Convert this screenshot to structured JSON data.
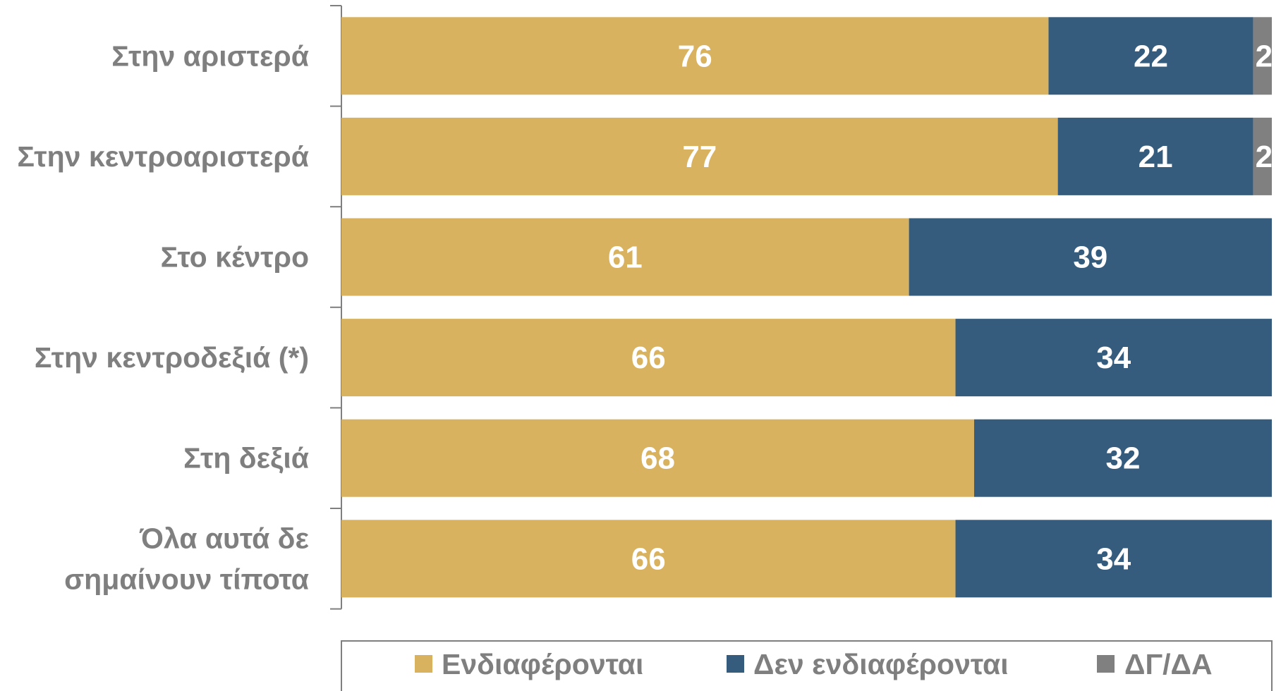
{
  "chart_data": {
    "type": "bar",
    "orientation": "horizontal",
    "stacked": true,
    "categories": [
      "Στην αριστερά",
      "Στην κεντροαριστερά",
      "Στο κέντρο",
      "Στην κεντροδεξιά (*)",
      "Στη δεξιά",
      "Όλα αυτά δε σημαίνουν τίποτα"
    ],
    "category_lines": [
      [
        "Στην αριστερά"
      ],
      [
        "Στην κεντροαριστερά"
      ],
      [
        "Στο κέντρο"
      ],
      [
        "Στην κεντροδεξιά (*)"
      ],
      [
        "Στη δεξιά"
      ],
      [
        "Όλα αυτά δε",
        "σημαίνουν τίποτα"
      ]
    ],
    "series": [
      {
        "name": "Ενδιαφέρονται",
        "color": "#D8B25F",
        "values": [
          76,
          77,
          61,
          66,
          68,
          66
        ]
      },
      {
        "name": "Δεν ενδιαφέρονται",
        "color": "#355C7D",
        "values": [
          22,
          21,
          39,
          34,
          32,
          34
        ]
      },
      {
        "name": "ΔΓ/ΔΑ",
        "color": "#808080",
        "values": [
          2,
          2,
          0,
          0,
          0,
          0
        ]
      }
    ],
    "xlim": [
      0,
      100
    ],
    "grid": false,
    "legend_position": "bottom",
    "data_labels": true
  }
}
